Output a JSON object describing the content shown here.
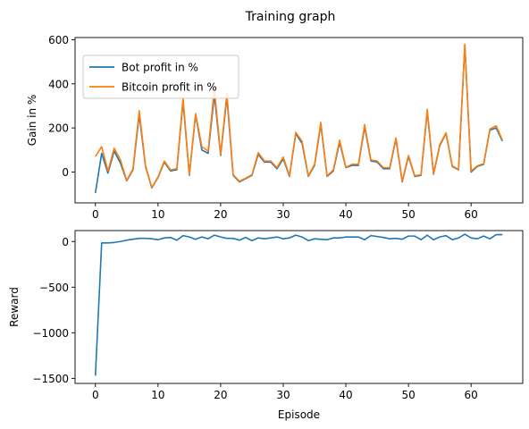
{
  "figure_title": "Training graph",
  "chart_data": [
    {
      "type": "line",
      "ylabel": "Gain in %",
      "xlabel": "",
      "xlim": [
        -3.25,
        68.25
      ],
      "ylim": [
        -140,
        610
      ],
      "xticks": [
        0,
        10,
        20,
        30,
        40,
        50,
        60
      ],
      "yticks": [
        0,
        200,
        400,
        600
      ],
      "legend_position": "upper-left",
      "series": [
        {
          "name": "Bot profit in %",
          "color": "#1f77b4",
          "values": [
            -95,
            85,
            -5,
            95,
            40,
            -40,
            10,
            260,
            25,
            -72,
            -25,
            45,
            5,
            10,
            320,
            -15,
            260,
            100,
            85,
            350,
            75,
            340,
            -15,
            -45,
            -30,
            -15,
            80,
            45,
            45,
            15,
            60,
            -20,
            175,
            130,
            -20,
            30,
            215,
            -20,
            5,
            135,
            20,
            30,
            30,
            205,
            50,
            45,
            15,
            15,
            150,
            -45,
            70,
            -20,
            -15,
            275,
            -10,
            120,
            175,
            25,
            10,
            575,
            0,
            25,
            35,
            190,
            200,
            140
          ]
        },
        {
          "name": "Bitcoin profit in %",
          "color": "#ff7f0e",
          "values": [
            70,
            115,
            5,
            108,
            55,
            -38,
            15,
            278,
            30,
            -70,
            -22,
            50,
            10,
            15,
            335,
            -12,
            265,
            115,
            95,
            380,
            80,
            358,
            -12,
            -42,
            -28,
            -12,
            88,
            50,
            50,
            20,
            68,
            -17,
            180,
            140,
            -17,
            35,
            225,
            -17,
            10,
            145,
            22,
            35,
            35,
            215,
            55,
            50,
            20,
            20,
            155,
            -42,
            75,
            -17,
            -12,
            285,
            -7,
            125,
            178,
            28,
            12,
            580,
            5,
            28,
            38,
            195,
            210,
            145
          ]
        }
      ]
    },
    {
      "type": "line",
      "ylabel": "Reward",
      "xlabel": "Episode",
      "xlim": [
        -3.25,
        68.25
      ],
      "ylim": [
        -1555,
        120
      ],
      "xticks": [
        0,
        10,
        20,
        30,
        40,
        50,
        60
      ],
      "yticks": [
        0,
        -500,
        -1000,
        -1500
      ],
      "series": [
        {
          "name": "",
          "color": "#1f77b4",
          "values": [
            -1470,
            -15,
            -15,
            -10,
            0,
            15,
            25,
            35,
            35,
            30,
            20,
            40,
            45,
            15,
            65,
            50,
            25,
            50,
            30,
            70,
            50,
            35,
            35,
            15,
            45,
            10,
            40,
            30,
            40,
            50,
            30,
            40,
            70,
            50,
            10,
            30,
            25,
            20,
            40,
            40,
            50,
            50,
            50,
            20,
            65,
            55,
            45,
            30,
            35,
            25,
            60,
            60,
            20,
            70,
            20,
            50,
            65,
            20,
            40,
            80,
            40,
            30,
            60,
            30,
            75,
            75
          ]
        }
      ]
    }
  ]
}
